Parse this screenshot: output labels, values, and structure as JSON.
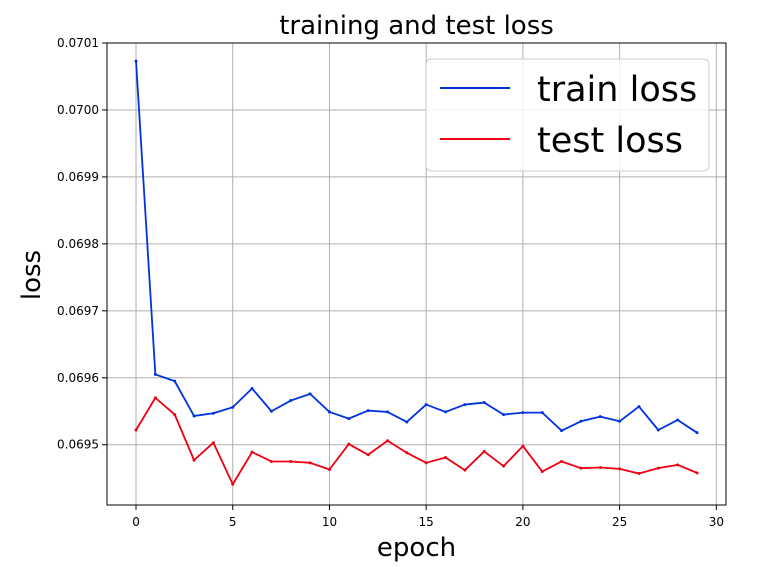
{
  "chart_data": {
    "type": "line",
    "title": "training and test loss",
    "xlabel": "epoch",
    "ylabel": "loss",
    "xlim": [
      -1.5,
      30.5
    ],
    "ylim": [
      0.06941,
      0.0701
    ],
    "xticks": [
      0,
      5,
      10,
      15,
      20,
      25,
      30
    ],
    "yticks": [
      0.0695,
      0.0696,
      0.0697,
      0.0698,
      0.0699,
      0.07,
      0.0701
    ],
    "ytick_labels": [
      "0.0695",
      "0.0696",
      "0.0697",
      "0.0698",
      "0.0699",
      "0.0700",
      "0.0701"
    ],
    "grid": true,
    "legend_position": "top-right",
    "x": [
      0,
      1,
      2,
      3,
      4,
      5,
      6,
      7,
      8,
      9,
      10,
      11,
      12,
      13,
      14,
      15,
      16,
      17,
      18,
      19,
      20,
      21,
      22,
      23,
      24,
      25,
      26,
      27,
      28,
      29
    ],
    "series": [
      {
        "name": "train loss",
        "color": "#0033dd",
        "values": [
          0.070073,
          0.069605,
          0.069595,
          0.069543,
          0.069547,
          0.069556,
          0.069584,
          0.06955,
          0.069566,
          0.069576,
          0.069549,
          0.069539,
          0.069551,
          0.069549,
          0.069534,
          0.06956,
          0.069549,
          0.06956,
          0.069563,
          0.069545,
          0.069548,
          0.069548,
          0.069521,
          0.069535,
          0.069542,
          0.069535,
          0.069557,
          0.069522,
          0.069537,
          0.069518
        ]
      },
      {
        "name": "test loss",
        "color": "#ee0011",
        "values": [
          0.069522,
          0.06957,
          0.069545,
          0.069477,
          0.069503,
          0.069441,
          0.069489,
          0.069475,
          0.069475,
          0.069473,
          0.069463,
          0.069501,
          0.069485,
          0.069506,
          0.069488,
          0.069473,
          0.069481,
          0.069462,
          0.06949,
          0.069468,
          0.069498,
          0.06946,
          0.069475,
          0.069465,
          0.069466,
          0.069464,
          0.069457,
          0.069465,
          0.06947,
          0.069458
        ]
      }
    ]
  }
}
